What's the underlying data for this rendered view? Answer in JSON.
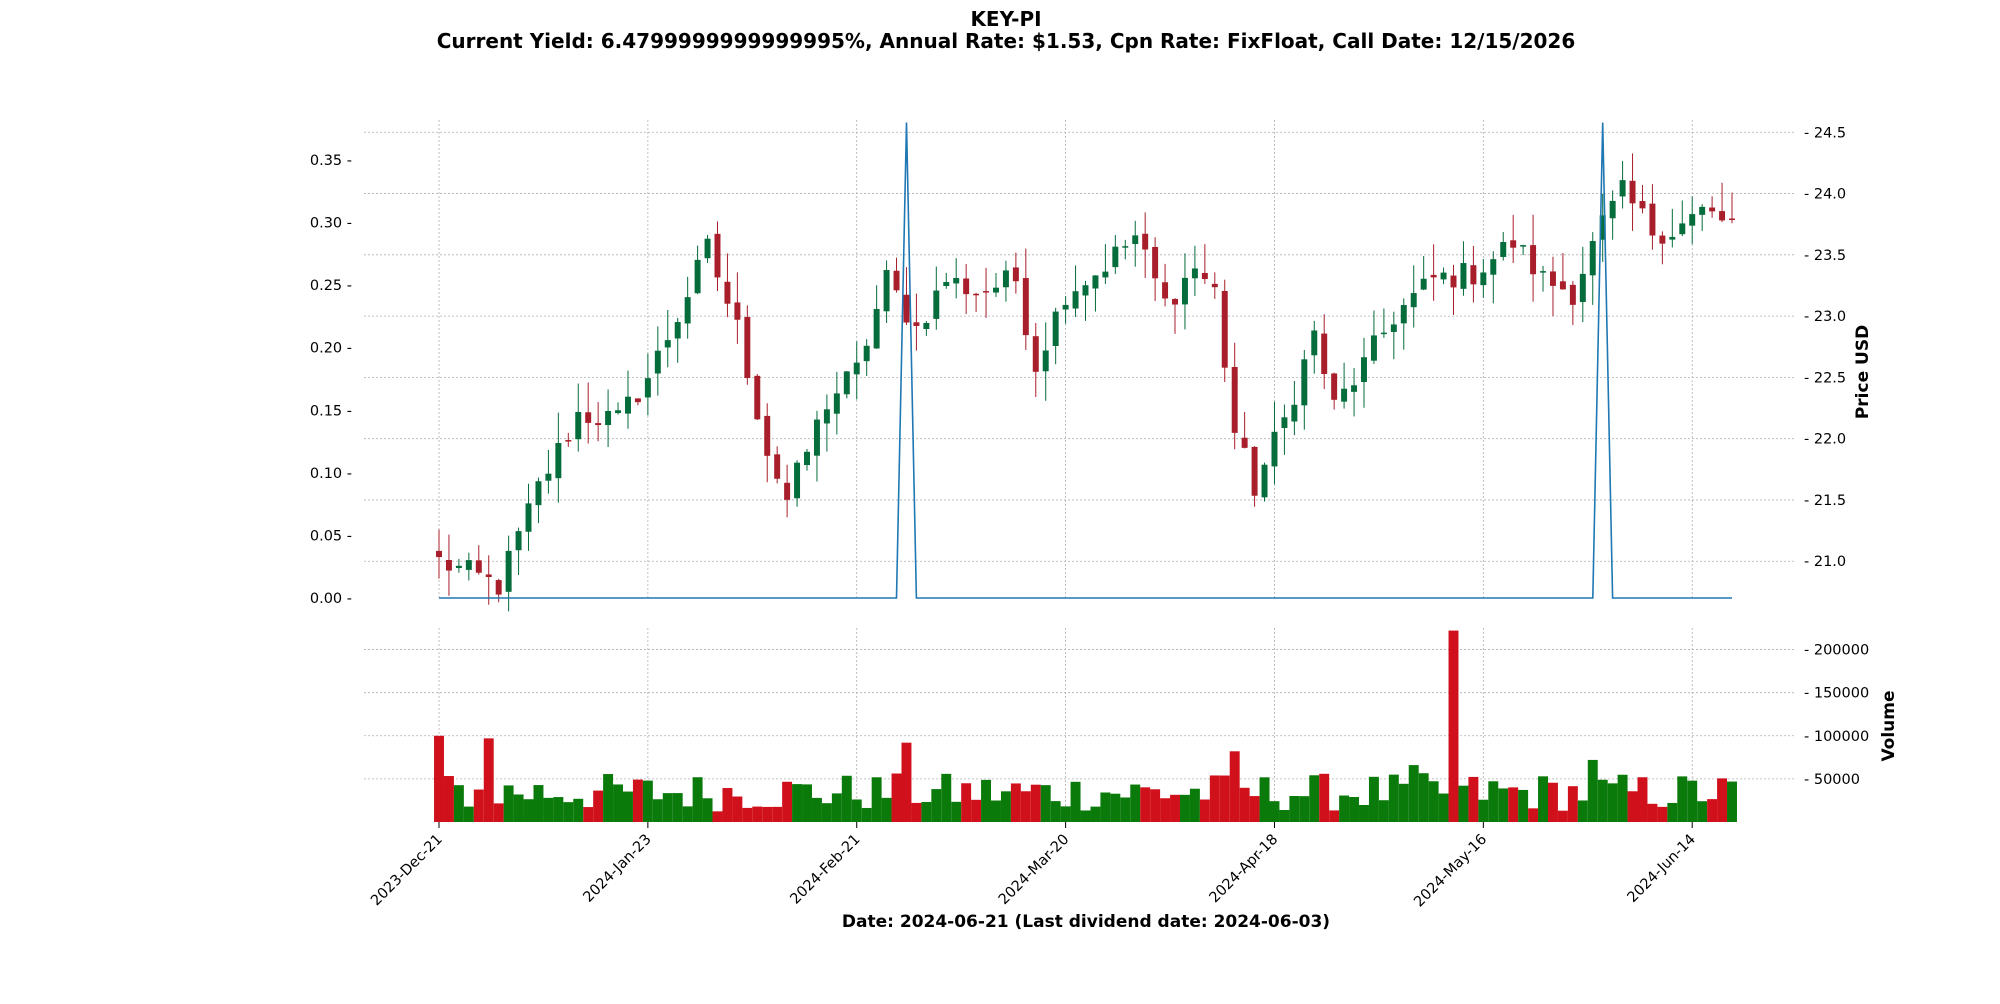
{
  "chart_data": {
    "type": "candlestick",
    "title": "KEY-PI",
    "subtitle": "Current Yield: 6.4799999999999995%, Annual Rate: $1.53, Cpn Rate: FixFloat, Call Date: 12/15/2026",
    "xlabel": "Date: 2024-06-21   (Last dividend date: 2024-06-03)",
    "price_axis_label": "Price USD",
    "volume_axis_label": "Volume",
    "x_tick_labels": [
      "2023-Dec-21",
      "2024-Jan-23",
      "2024-Feb-21",
      "2024-Mar-20",
      "2024-Apr-18",
      "2024-May-16",
      "2024-Jun-14"
    ],
    "x_tick_indices": [
      0,
      21,
      42,
      63,
      84,
      105,
      126
    ],
    "num_points": 131,
    "price_ticks": [
      21.0,
      21.5,
      22.0,
      22.5,
      23.0,
      23.5,
      24.0,
      24.5
    ],
    "price_ylim": [
      20.7,
      24.6
    ],
    "dividend_ticks": [
      0.0,
      0.05,
      0.1,
      0.15,
      0.2,
      0.25,
      0.3,
      0.35
    ],
    "dividend_ylim": [
      0.0,
      0.382
    ],
    "volume_ticks": [
      50000,
      100000,
      150000,
      200000
    ],
    "volume_ylim": [
      0,
      225000
    ],
    "dividend_series": {
      "baseline": 0.0,
      "events": [
        {
          "index": 47,
          "value": 0.38
        },
        {
          "index": 117,
          "value": 0.38
        }
      ]
    },
    "colors": {
      "up": "#056c3b",
      "down": "#a81e2a",
      "volume_up": "#0a7a0a",
      "volume_down": "#d0111c",
      "dividend_line": "#1f77b4",
      "grid": "#b0b0b0"
    },
    "grid": true,
    "waypoints": [
      [
        0,
        21.0
      ],
      [
        6,
        20.8
      ],
      [
        10,
        21.6
      ],
      [
        14,
        22.2
      ],
      [
        18,
        22.15
      ],
      [
        21,
        22.5
      ],
      [
        24,
        23.0
      ],
      [
        27,
        23.55
      ],
      [
        30,
        22.9
      ],
      [
        33,
        21.9
      ],
      [
        35,
        21.5
      ],
      [
        39,
        22.3
      ],
      [
        42,
        22.55
      ],
      [
        45,
        23.3
      ],
      [
        48,
        22.9
      ],
      [
        51,
        23.3
      ],
      [
        54,
        23.2
      ],
      [
        58,
        23.3
      ],
      [
        60,
        22.6
      ],
      [
        63,
        23.2
      ],
      [
        66,
        23.35
      ],
      [
        70,
        23.65
      ],
      [
        73,
        23.1
      ],
      [
        76,
        23.4
      ],
      [
        78,
        23.2
      ],
      [
        80,
        22.05
      ],
      [
        82,
        21.6
      ],
      [
        85,
        22.15
      ],
      [
        88,
        22.85
      ],
      [
        90,
        22.25
      ],
      [
        93,
        22.6
      ],
      [
        96,
        23.0
      ],
      [
        100,
        23.3
      ],
      [
        104,
        23.35
      ],
      [
        108,
        23.6
      ],
      [
        111,
        23.3
      ],
      [
        114,
        23.2
      ],
      [
        117,
        23.75
      ],
      [
        119,
        24.0
      ],
      [
        122,
        23.7
      ],
      [
        124,
        23.7
      ],
      [
        127,
        23.85
      ],
      [
        130,
        23.75
      ]
    ],
    "volume_spikes": [
      {
        "index": 0,
        "value": 100000
      },
      {
        "index": 5,
        "value": 97000
      },
      {
        "index": 47,
        "value": 92000
      },
      {
        "index": 102,
        "value": 222000
      },
      {
        "index": 116,
        "value": 72000
      },
      {
        "index": 98,
        "value": 66000
      },
      {
        "index": 80,
        "value": 82000
      }
    ]
  }
}
